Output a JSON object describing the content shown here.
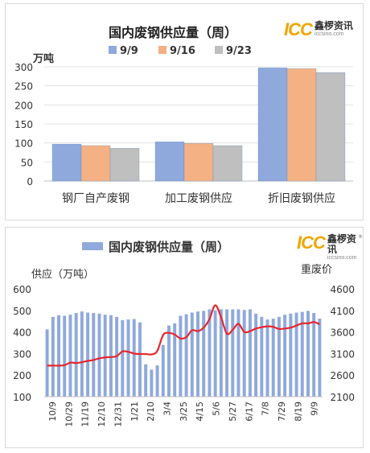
{
  "logo": {
    "mark": "ICC",
    "name_cn": "鑫椤资讯",
    "site": "iccsino.com",
    "registered": "®"
  },
  "chart_data": [
    {
      "type": "bar",
      "title": "国内废钢供应量（周）",
      "ylabel": "万吨",
      "ylim": [
        0,
        300
      ],
      "yticks": [
        0,
        50,
        100,
        150,
        200,
        250,
        300
      ],
      "categories": [
        "钢厂自产废钢",
        "加工废钢供应",
        "折旧废钢供应"
      ],
      "series": [
        {
          "name": "9/9",
          "color": "#8fa9dc",
          "values": [
            97,
            103,
            297
          ]
        },
        {
          "name": "9/16",
          "color": "#f4b183",
          "values": [
            93,
            99,
            295
          ]
        },
        {
          "name": "9/23",
          "color": "#bfbfbf",
          "values": [
            86,
            93,
            285
          ]
        }
      ],
      "legend_position": "top",
      "grid": true
    },
    {
      "type": "bar+line",
      "title": "国内废钢供应量（周）",
      "legend": [
        "国内废钢供应量（周）"
      ],
      "ylabel_left": "供应（万吨）",
      "ylabel_right": "重废价",
      "ylim_left": [
        100,
        600
      ],
      "yticks_left": [
        100,
        200,
        300,
        400,
        500,
        600
      ],
      "ylim_right": [
        2100,
        4600
      ],
      "yticks_right": [
        2100,
        2600,
        3100,
        3600,
        4100,
        4600
      ],
      "bar_color": "#8fa9dc",
      "line_color": "#e8262c",
      "xtick_labels": [
        "10/9",
        "10/29",
        "11/19",
        "12/10",
        "12/31",
        "1/21",
        "2/10",
        "3/4",
        "3/25",
        "4/15",
        "5/6",
        "5/27",
        "6/17",
        "7/8",
        "7/29",
        "8/19",
        "9/9"
      ],
      "bars": [
        412,
        470,
        478,
        475,
        480,
        488,
        495,
        490,
        488,
        485,
        480,
        478,
        470,
        455,
        458,
        460,
        445,
        250,
        225,
        245,
        340,
        430,
        440,
        475,
        482,
        490,
        495,
        498,
        505,
        500,
        505,
        505,
        505,
        505,
        502,
        505,
        485,
        470,
        458,
        462,
        470,
        480,
        485,
        490,
        493,
        498,
        488,
        462
      ],
      "price": [
        2820,
        2820,
        2820,
        2830,
        2890,
        2880,
        2900,
        2930,
        2950,
        2990,
        3010,
        3020,
        3040,
        3150,
        3140,
        3100,
        3090,
        3090,
        3080,
        3160,
        3530,
        3580,
        3540,
        3450,
        3480,
        3640,
        3620,
        3700,
        3900,
        4220,
        3940,
        3560,
        3650,
        3790,
        3600,
        3620,
        3680,
        3710,
        3730,
        3720,
        3670,
        3680,
        3700,
        3750,
        3800,
        3800,
        3830,
        3780
      ]
    }
  ]
}
